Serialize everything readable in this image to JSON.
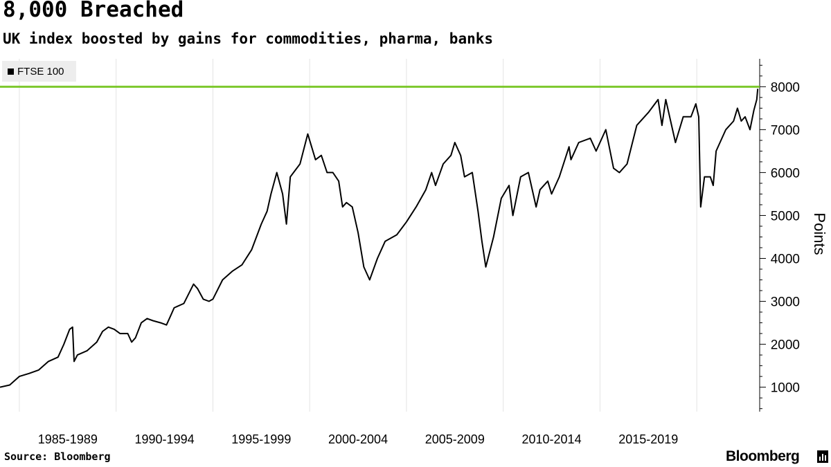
{
  "title": "8,000 Breached",
  "subtitle": "UK index boosted by gains for commodities, pharma, banks",
  "legend": {
    "label": "FTSE 100",
    "color": "#000000"
  },
  "source": "Source: Bloomberg",
  "brand": "Bloomberg",
  "brand_icon": "bloomberg-terminal-icon",
  "colors": {
    "line": "#000000",
    "reference_line": "#7dc82d",
    "gridline": "#e3e3e3",
    "background": "#ffffff"
  },
  "chart_data": {
    "type": "line",
    "title": "8,000 Breached",
    "subtitle": "UK index boosted by gains for commodities, pharma, banks",
    "xlabel": "",
    "ylabel": "Points",
    "x_tick_labels": [
      "1985-1989",
      "1990-1994",
      "1995-1999",
      "2000-2004",
      "2005-2009",
      "2010-2014",
      "2015-2019"
    ],
    "x_range": [
      1984.0,
      2023.25
    ],
    "ylim": [
      430,
      8650
    ],
    "y_ticks": [
      1000,
      2000,
      3000,
      4000,
      5000,
      6000,
      7000,
      8000
    ],
    "y_axis_position": "right",
    "grid": "vertical",
    "legend_position": "top-left",
    "reference_line": {
      "y": 8000
    },
    "series": [
      {
        "name": "FTSE 100",
        "x": [
          1984.0,
          1984.5,
          1985.0,
          1985.5,
          1986.0,
          1986.5,
          1987.0,
          1987.3,
          1987.6,
          1987.75,
          1987.83,
          1988.0,
          1988.5,
          1989.0,
          1989.3,
          1989.6,
          1989.9,
          1990.2,
          1990.6,
          1990.8,
          1991.0,
          1991.3,
          1991.6,
          1991.9,
          1992.3,
          1992.6,
          1992.8,
          1993.0,
          1993.5,
          1994.0,
          1994.2,
          1994.5,
          1994.8,
          1995.0,
          1995.5,
          1996.0,
          1996.5,
          1997.0,
          1997.5,
          1997.8,
          1998.0,
          1998.3,
          1998.6,
          1998.8,
          1999.0,
          1999.5,
          1999.9,
          2000.3,
          2000.6,
          2000.9,
          2001.2,
          2001.5,
          2001.7,
          2001.9,
          2002.2,
          2002.5,
          2002.8,
          2003.1,
          2003.5,
          2003.9,
          2004.5,
          2005.0,
          2005.5,
          2006.0,
          2006.3,
          2006.5,
          2006.9,
          2007.3,
          2007.5,
          2007.8,
          2008.0,
          2008.4,
          2008.7,
          2008.9,
          2009.1,
          2009.5,
          2009.9,
          2010.3,
          2010.5,
          2010.9,
          2011.3,
          2011.7,
          2011.9,
          2012.3,
          2012.5,
          2012.9,
          2013.4,
          2013.5,
          2013.9,
          2014.5,
          2014.8,
          2015.3,
          2015.7,
          2016.0,
          2016.4,
          2016.9,
          2017.5,
          2018.0,
          2018.2,
          2018.4,
          2018.9,
          2019.3,
          2019.7,
          2019.95,
          2020.1,
          2020.2,
          2020.4,
          2020.7,
          2020.85,
          2021.0,
          2021.5,
          2021.9,
          2022.1,
          2022.3,
          2022.5,
          2022.75,
          2022.95,
          2023.1,
          2023.15
        ],
        "values": [
          1000,
          1050,
          1250,
          1320,
          1400,
          1600,
          1700,
          2000,
          2350,
          2400,
          1600,
          1750,
          1850,
          2050,
          2300,
          2400,
          2350,
          2250,
          2250,
          2050,
          2150,
          2500,
          2600,
          2550,
          2500,
          2450,
          2650,
          2850,
          2950,
          3400,
          3300,
          3050,
          3000,
          3050,
          3500,
          3700,
          3850,
          4200,
          4800,
          5100,
          5500,
          6000,
          5500,
          4800,
          5900,
          6200,
          6900,
          6300,
          6400,
          6000,
          6000,
          5800,
          5200,
          5300,
          5200,
          4600,
          3800,
          3500,
          4000,
          4400,
          4550,
          4850,
          5200,
          5600,
          6000,
          5700,
          6200,
          6400,
          6700,
          6400,
          5900,
          6000,
          5100,
          4400,
          3800,
          4500,
          5400,
          5700,
          5000,
          5900,
          6000,
          5200,
          5600,
          5800,
          5500,
          5900,
          6600,
          6300,
          6700,
          6800,
          6500,
          7000,
          6100,
          6000,
          6200,
          7100,
          7400,
          7700,
          7100,
          7700,
          6700,
          7300,
          7300,
          7600,
          7300,
          5200,
          5900,
          5900,
          5700,
          6500,
          7000,
          7200,
          7500,
          7200,
          7300,
          7000,
          7450,
          7700,
          7950
        ]
      }
    ]
  }
}
